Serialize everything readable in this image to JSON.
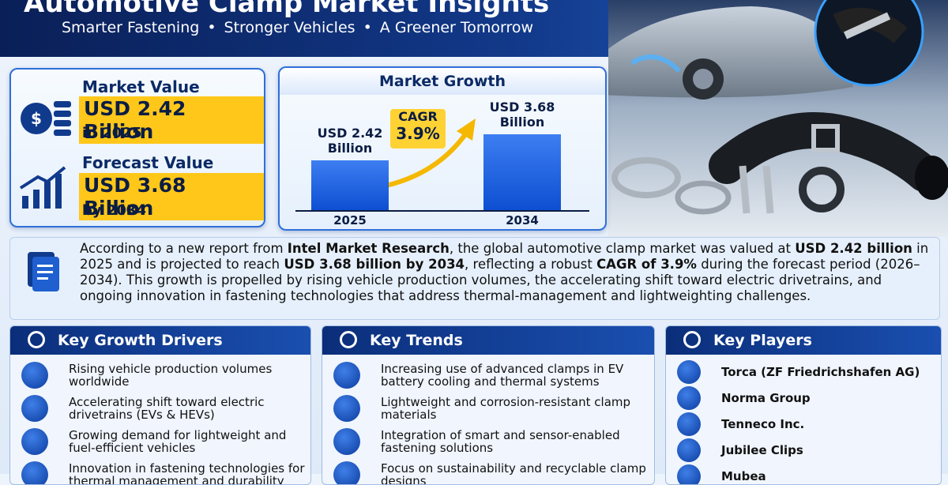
{
  "header": {
    "title": "Automotive Clamp Market Insights",
    "taglines": [
      "Smarter Fastening",
      "Stronger Vehicles",
      "A Greener Tomorrow"
    ]
  },
  "market_value": {
    "label": "Market Value",
    "value": "USD 2.42 Billion",
    "period": "in 2025"
  },
  "forecast_value": {
    "label": "Forecast Value",
    "value": "USD 3.68 Billion",
    "period": "by 2034"
  },
  "market_growth": {
    "title": "Market Growth",
    "categories": [
      "2025",
      "2034"
    ],
    "values": [
      2.42,
      3.68
    ],
    "value_labels": [
      "USD 2.42 Billion",
      "USD 3.68 Billion"
    ],
    "cagr_label": "CAGR",
    "cagr": "3.9%"
  },
  "description": [
    "According to a new report from ",
    "Intel Market Research",
    ", the global automotive clamp market was valued at ",
    "USD 2.42 billion",
    " in 2025 and is projected to reach ",
    "USD 3.68 billion by 2034",
    ", reflecting a robust ",
    "CAGR of 3.9%",
    " during the forecast period (2026–2034). This growth is propelled by rising vehicle production volumes, the accelerating shift toward electric drivetrains, and ongoing innovation in fastening technologies that address thermal-management and lightweighting challenges."
  ],
  "drivers": {
    "title": "Key Growth Drivers",
    "items": [
      "Rising vehicle production volumes worldwide",
      "Accelerating shift toward electric drivetrains (EVs & HEVs)",
      "Growing demand for lightweight and fuel-efficient vehicles",
      "Innovation in fastening technologies for thermal management and durability"
    ]
  },
  "trends": {
    "title": "Key Trends",
    "items": [
      "Increasing use of advanced clamps in EV battery cooling and thermal systems",
      "Lightweight and corrosion-resistant clamp materials",
      "Integration of smart and sensor-enabled fastening solutions",
      "Focus on sustainability and recyclable clamp designs"
    ]
  },
  "players": {
    "title": "Key Players",
    "items": [
      "Torca (ZF Friedrichshafen AG)",
      "Norma Group",
      "Tenneco Inc.",
      "Jubilee Clips",
      "Mubea"
    ]
  }
}
